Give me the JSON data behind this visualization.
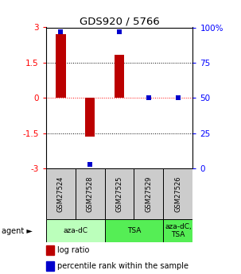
{
  "title": "GDS920 / 5766",
  "samples": [
    "GSM27524",
    "GSM27528",
    "GSM27525",
    "GSM27529",
    "GSM27526"
  ],
  "log_ratios": [
    2.7,
    -1.65,
    1.85,
    0.0,
    0.0
  ],
  "percentile_ranks": [
    97,
    3,
    97,
    50,
    50
  ],
  "agents": [
    {
      "label": "aza-dC",
      "span": [
        0,
        2
      ],
      "color": "#bbffbb"
    },
    {
      "label": "TSA",
      "span": [
        2,
        4
      ],
      "color": "#55ee55"
    },
    {
      "label": "aza-dC,\nTSA",
      "span": [
        4,
        5
      ],
      "color": "#55ee55"
    }
  ],
  "ylim": [
    -3,
    3
  ],
  "yticks_left": [
    -3,
    -1.5,
    0,
    1.5,
    3
  ],
  "yticks_right": [
    0,
    25,
    50,
    75,
    100
  ],
  "bar_color": "#bb0000",
  "dot_color": "#0000cc",
  "sample_box_color": "#cccccc",
  "bar_width": 0.35
}
